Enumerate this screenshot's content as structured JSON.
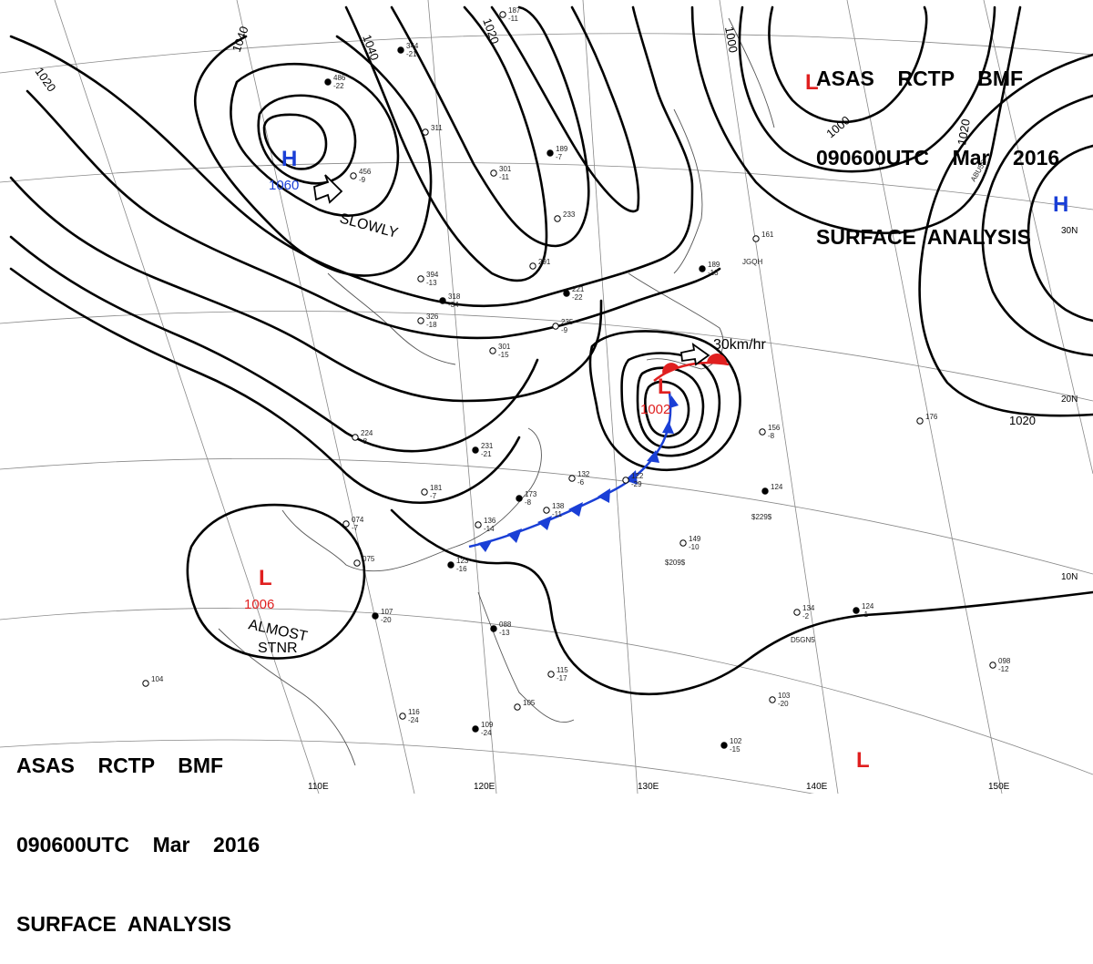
{
  "header_top": {
    "line1": "ASAS    RCTP    BMF",
    "line2": "090600UTC    Mar    2016",
    "line3": "SURFACE  ANALYSIS"
  },
  "header_bottom": {
    "line1": "ASAS    RCTP    BMF",
    "line2": "090600UTC    Mar    2016",
    "line3": "SURFACE  ANALYSIS"
  },
  "colors": {
    "isobar": "#000000",
    "high": "#1a3fd6",
    "low": "#e02020",
    "cold_front": "#1a3fd6",
    "warm_front": "#e02020",
    "grid": "#888888"
  },
  "isobar_labels": [
    "1020",
    "1040",
    "1040",
    "1020",
    "1000",
    "1000",
    "1020",
    "1020"
  ],
  "lat_labels": [
    "30N",
    "20N",
    "10N"
  ],
  "lon_labels": [
    "110E",
    "120E",
    "130E",
    "140E",
    "150E"
  ],
  "systems": [
    {
      "type": "high",
      "letter": "H",
      "pressure": "1060"
    },
    {
      "type": "high",
      "letter": "H",
      "pressure": ""
    },
    {
      "type": "low",
      "letter": "L",
      "pressure": "1002"
    },
    {
      "type": "low",
      "letter": "L",
      "pressure": "1006"
    },
    {
      "type": "low",
      "letter": "L",
      "pressure": ""
    },
    {
      "type": "low",
      "letter": "L",
      "pressure": ""
    }
  ],
  "remarks": {
    "high_motion": "SLOWLY",
    "low_motion": "30km/hr",
    "stnr_line1": "ALMOST",
    "stnr_line2": "STNR"
  },
  "stations": [
    "486 -22",
    "456 -9",
    "394 -13",
    "318 -34",
    "326 -18",
    "301 -15",
    "231 -21",
    "181 -7",
    "224 -8",
    "173 -8",
    "136 -14",
    "138 -11",
    "123 -16",
    "074 -7",
    "075",
    "107 -20",
    "104",
    "116 -24",
    "109 -24",
    "105",
    "115 -17",
    "088 -13",
    "132 -6",
    "122 -29",
    "189 -13",
    "161",
    "156 -8",
    "124",
    "149 -10",
    "134 -2",
    "124 -1",
    "098 -12",
    "103 -20",
    "102 -15",
    "176",
    "235 -9",
    "221 -22",
    "291",
    "233",
    "189 -7",
    "301 -11",
    "311",
    "344 -21",
    "187 -11"
  ],
  "ship_ids": [
    "$229$",
    "$209$",
    "D5GN5",
    "JGQH",
    "ABU5S"
  ]
}
